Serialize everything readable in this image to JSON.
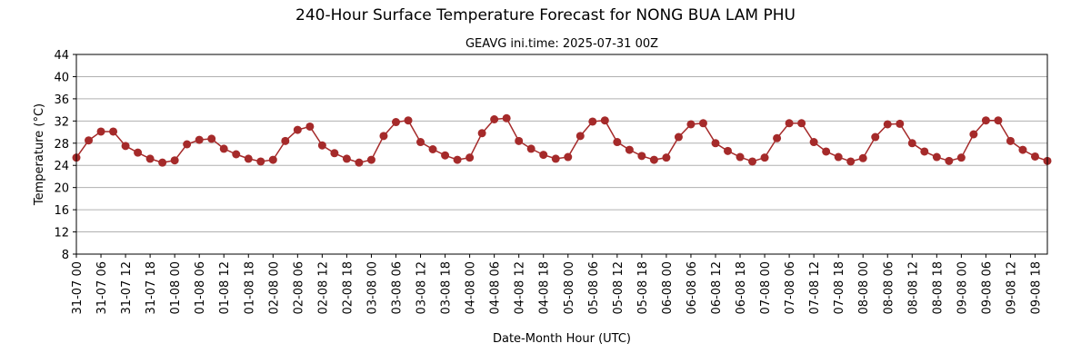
{
  "chart_data": {
    "type": "line",
    "title": "240-Hour Surface Temperature Forecast for NONG BUA LAM PHU",
    "subtitle": "GEAVG ini.time: 2025-07-31 00Z",
    "xlabel": "Date-Month Hour (UTC)",
    "ylabel": "Temperature (°C)",
    "ylim": [
      8,
      44
    ],
    "yticks": [
      8,
      12,
      16,
      20,
      24,
      28,
      32,
      36,
      40,
      44
    ],
    "grid": "horizontal",
    "x_step_hours": 3,
    "x_tick_labels": [
      "31-07 00",
      "31-07 06",
      "31-07 12",
      "31-07 18",
      "01-08 00",
      "01-08 06",
      "01-08 12",
      "01-08 18",
      "02-08 00",
      "02-08 06",
      "02-08 12",
      "02-08 18",
      "03-08 00",
      "03-08 06",
      "03-08 12",
      "03-08 18",
      "04-08 00",
      "04-08 06",
      "04-08 12",
      "04-08 18",
      "05-08 00",
      "05-08 06",
      "05-08 12",
      "05-08 18",
      "06-08 00",
      "06-08 06",
      "06-08 12",
      "06-08 18",
      "07-08 00",
      "07-08 06",
      "07-08 12",
      "07-08 18",
      "08-08 00",
      "08-08 06",
      "08-08 12",
      "08-08 18",
      "09-08 00",
      "09-08 06",
      "09-08 12",
      "09-08 18"
    ],
    "series": [
      {
        "color": "#a52a2a",
        "values": [
          25.4,
          28.5,
          30.1,
          30.1,
          27.5,
          26.3,
          25.2,
          24.5,
          24.9,
          27.8,
          28.6,
          28.8,
          27.0,
          26.0,
          25.2,
          24.7,
          25.0,
          28.4,
          30.4,
          31.0,
          27.6,
          26.2,
          25.2,
          24.5,
          25.0,
          29.3,
          31.8,
          32.1,
          28.2,
          26.9,
          25.8,
          25.0,
          25.4,
          29.8,
          32.3,
          32.5,
          28.4,
          27.0,
          25.9,
          25.2,
          25.5,
          29.3,
          31.9,
          32.1,
          28.2,
          26.8,
          25.7,
          25.0,
          25.4,
          29.1,
          31.4,
          31.6,
          28.0,
          26.6,
          25.5,
          24.7,
          25.4,
          28.9,
          31.6,
          31.6,
          28.2,
          26.5,
          25.5,
          24.7,
          25.3,
          29.1,
          31.4,
          31.5,
          28.0,
          26.5,
          25.5,
          24.8,
          25.4,
          29.6,
          32.1,
          32.1,
          28.4,
          26.8,
          25.6,
          24.8
        ]
      }
    ]
  }
}
